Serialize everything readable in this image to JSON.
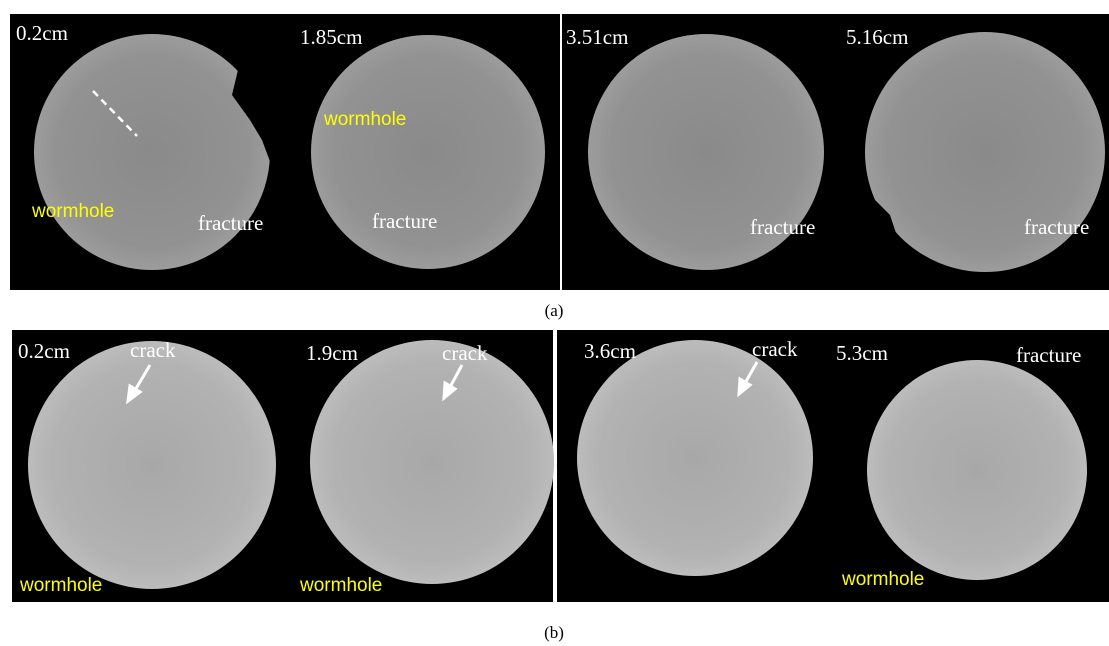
{
  "figure": {
    "panels": [
      {
        "label": "(a)",
        "slices": [
          {
            "depth": "0.2cm",
            "annotations": [
              "wormhole",
              "fracture"
            ]
          },
          {
            "depth": "1.85cm",
            "annotations": [
              "wormhole",
              "fracture"
            ]
          },
          {
            "depth": "3.51cm",
            "annotations": [
              "fracture"
            ]
          },
          {
            "depth": "5.16cm",
            "annotations": [
              "fracture"
            ]
          }
        ]
      },
      {
        "label": "(b)",
        "slices": [
          {
            "depth": "0.2cm",
            "annotations": [
              "crack",
              "wormhole"
            ]
          },
          {
            "depth": "1.9cm",
            "annotations": [
              "crack",
              "wormhole"
            ]
          },
          {
            "depth": "3.6cm",
            "annotations": [
              "crack"
            ]
          },
          {
            "depth": "5.3cm",
            "annotations": [
              "fracture",
              "wormhole"
            ]
          }
        ]
      }
    ]
  }
}
